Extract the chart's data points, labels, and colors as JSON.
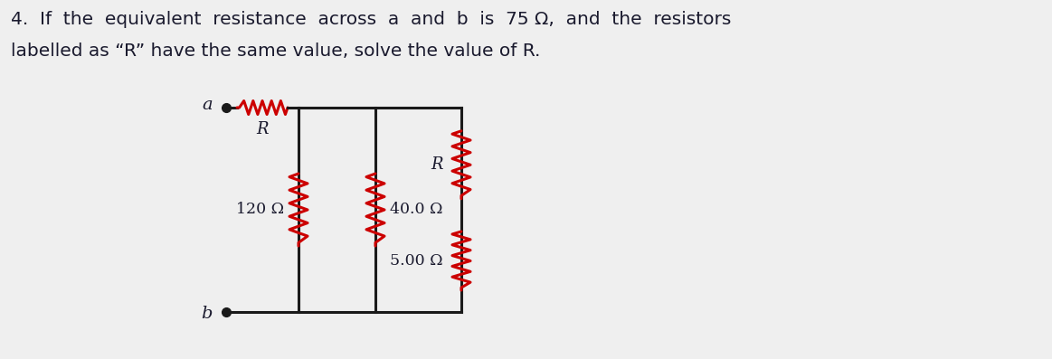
{
  "title_line1": "4.  If  the  equivalent  resistance  across  a  and  b  is  75 Ω,  and  the  resistors",
  "title_line2": "labelled as “R” have the same value, solve the value of R.",
  "label_a": "a",
  "label_b": "b",
  "label_R1": "R",
  "label_R2": "R",
  "label_120": "120 Ω",
  "label_40": "40.0 Ω",
  "label_5": "5.00 Ω",
  "resistor_color": "#CC0000",
  "wire_color": "#1a1a1a",
  "bg_color": "#efefef",
  "text_color": "#1a1a2e",
  "title_fontsize": 14.5,
  "label_fontsize": 13,
  "circuit_label_fontsize": 12.5
}
